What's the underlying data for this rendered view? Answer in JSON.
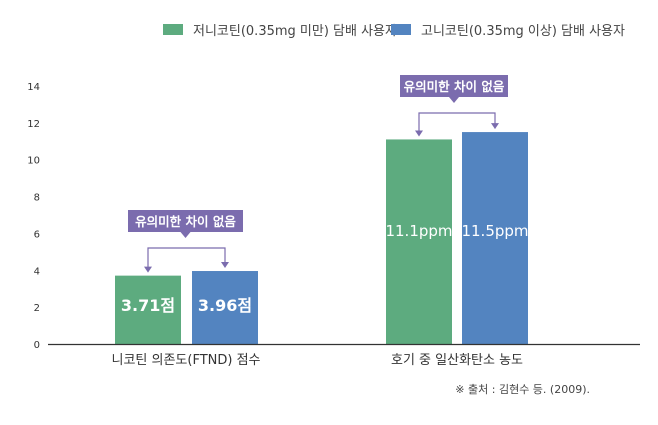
{
  "chart_data": {
    "type": "bar",
    "categories": [
      "니코틴 의존도(FTND) 점수",
      "호기 중 일산화탄소 농도"
    ],
    "series": [
      {
        "name": "저니코틴(0.35mg 미만) 담배 사용자",
        "color": "#5dab7f",
        "values": [
          3.71,
          11.1
        ],
        "labels": [
          "3.71점",
          "11.1ppm"
        ]
      },
      {
        "name": "고니코틴(0.35mg 이상) 담배 사용자",
        "color": "#5384c0",
        "values": [
          3.96,
          11.5
        ],
        "labels": [
          "3.96점",
          "11.5ppm"
        ]
      }
    ],
    "ylim": [
      0,
      14
    ],
    "yticks": [
      "0",
      "2",
      "4",
      "6",
      "8",
      "10",
      "12",
      "14"
    ],
    "legend_position": "top-right",
    "grid": false,
    "annotations": [
      "유의미한 차이 없음",
      "유의미한 차이 없음"
    ],
    "annotation_color": "#7b6cae",
    "source": "※ 출처 : 김현수 등. (2009)."
  }
}
